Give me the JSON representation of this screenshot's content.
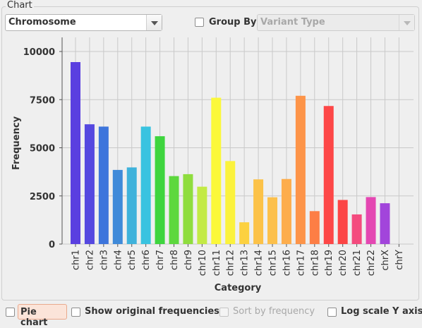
{
  "panel": {
    "title": "Chart",
    "chart_type_select": "Chromosome",
    "group_by_label": "Group By",
    "group_by_checked": false,
    "group_by_select": "Variant Type"
  },
  "footer": {
    "pie_chart_label": "Pie chart",
    "pie_chart_checked": false,
    "show_original_label": "Show original frequencies",
    "show_original_checked": false,
    "sort_by_frequency_label": "Sort by frequency",
    "sort_by_frequency_checked": false,
    "log_scale_label": "Log scale Y axis",
    "log_scale_checked": false
  },
  "chart_data": {
    "type": "bar",
    "xlabel": "Category",
    "ylabel": "Frequency",
    "ylim": [
      0,
      10000
    ],
    "yticks": [
      0,
      2500,
      5000,
      7500,
      10000
    ],
    "grid": true,
    "categories": [
      "chr1",
      "chr2",
      "chr3",
      "chr4",
      "chr5",
      "chr6",
      "chr7",
      "chr8",
      "chr9",
      "chr10",
      "chr11",
      "chr12",
      "chr13",
      "chr14",
      "chr15",
      "chr16",
      "chr17",
      "chr18",
      "chr19",
      "chr20",
      "chr21",
      "chr22",
      "chrX",
      "chrY"
    ],
    "values": [
      9450,
      6220,
      6100,
      3850,
      3980,
      6100,
      5600,
      3530,
      3630,
      2980,
      7600,
      4310,
      1130,
      3360,
      2430,
      3380,
      7700,
      1710,
      7170,
      2290,
      1540,
      2440,
      2120,
      0
    ],
    "colors": [
      "#5a3fe0",
      "#5548e0",
      "#3d75dc",
      "#3f8ad9",
      "#3fb2db",
      "#39c3e0",
      "#3ed53e",
      "#5dd83e",
      "#8fdd3e",
      "#c3ea45",
      "#fbf83a",
      "#fbf23c",
      "#fcd140",
      "#fcc248",
      "#fcc04b",
      "#fdad4c",
      "#fd9448",
      "#fd7e45",
      "#fd4747",
      "#fc4545",
      "#f44b7e",
      "#e447b2",
      "#a245db",
      "#a045e0"
    ]
  }
}
